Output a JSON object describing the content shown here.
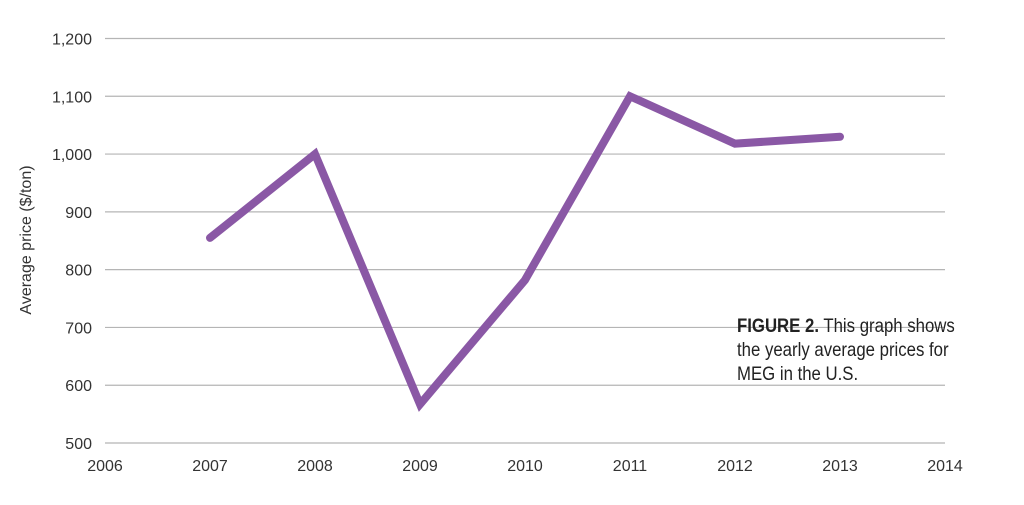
{
  "chart_data": {
    "type": "line",
    "title": "",
    "xlabel": "",
    "ylabel": "Average price ($/ton)",
    "xlim": [
      2006,
      2014
    ],
    "ylim": [
      500,
      1200
    ],
    "xticks": [
      "2006",
      "2007",
      "2008",
      "2009",
      "2010",
      "2011",
      "2012",
      "2013",
      "2014"
    ],
    "yticks": [
      "500",
      "600",
      "700",
      "800",
      "900",
      "1,000",
      "1,100",
      "1,200"
    ],
    "grid": "horizontal",
    "series": [
      {
        "color": "#8a58a5",
        "x": [
          2007,
          2008,
          2009,
          2010,
          2011,
          2012,
          2013
        ],
        "values": [
          855,
          1000,
          567,
          782,
          1100,
          1018,
          1030
        ]
      }
    ]
  },
  "caption": {
    "label": "FIGURE 2.",
    "text": " This graph shows the yearly average prices for MEG in the U.S."
  }
}
